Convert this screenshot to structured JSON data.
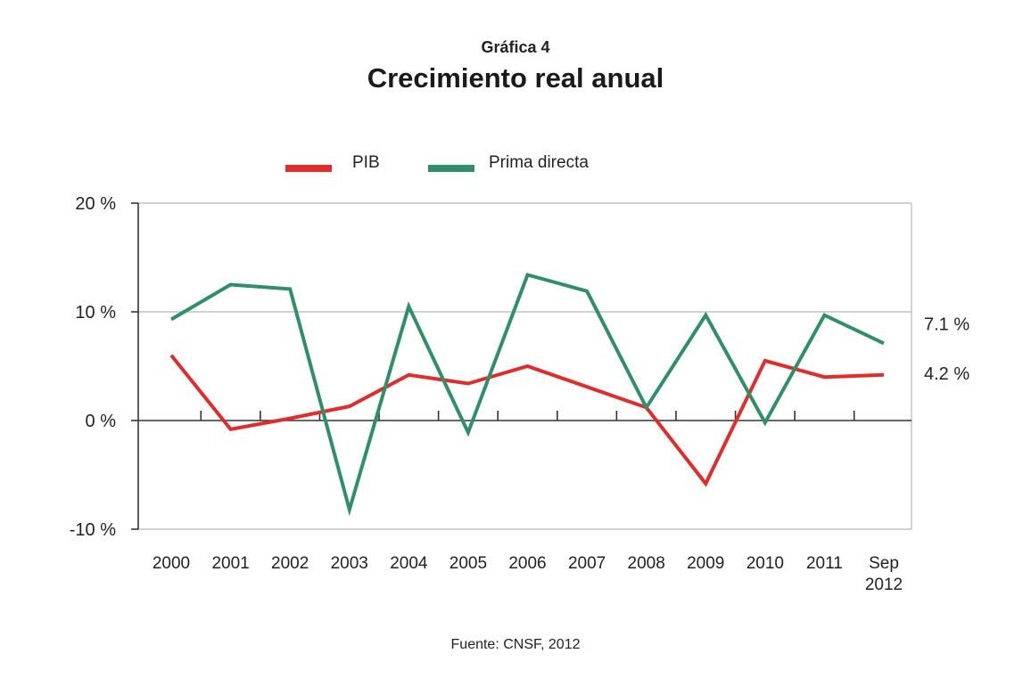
{
  "header": {
    "subtitle": "Gráfica 4",
    "title": "Crecimiento real anual"
  },
  "source": "Fuente: CNSF, 2012",
  "colors": {
    "pib": "#e32b2b",
    "prima": "#2e8f6a",
    "axis": "#333333",
    "grid": "#b8b8b8"
  },
  "chart_data": {
    "type": "line",
    "title": "Crecimiento real anual",
    "subtitle": "Gráfica 4",
    "categories": [
      "2000",
      "2001",
      "2002",
      "2003",
      "2004",
      "2005",
      "2006",
      "2007",
      "2008",
      "2009",
      "2010",
      "2011",
      "Sep 2012"
    ],
    "category_lines": [
      [
        "2000"
      ],
      [
        "2001"
      ],
      [
        "2002"
      ],
      [
        "2003"
      ],
      [
        "2004"
      ],
      [
        "2005"
      ],
      [
        "2006"
      ],
      [
        "2007"
      ],
      [
        "2008"
      ],
      [
        "2009"
      ],
      [
        "2010"
      ],
      [
        "2011"
      ],
      [
        "Sep",
        "2012"
      ]
    ],
    "series": [
      {
        "name": "PIB",
        "color": "#e32b2b",
        "values": [
          6.0,
          -0.8,
          0.2,
          1.3,
          4.2,
          3.4,
          5.0,
          3.1,
          1.2,
          -5.8,
          5.5,
          4.0,
          4.2
        ]
      },
      {
        "name": "Prima directa",
        "color": "#2e8f6a",
        "values": [
          9.3,
          12.5,
          12.1,
          -8.2,
          10.5,
          -1.1,
          13.4,
          11.9,
          1.2,
          9.7,
          -0.2,
          9.7,
          7.1
        ]
      }
    ],
    "yticks": [
      {
        "value": 20,
        "label": "20 %"
      },
      {
        "value": 10,
        "label": "10 %"
      },
      {
        "value": 0,
        "label": "0 %"
      },
      {
        "value": -10,
        "label": "-10 %"
      }
    ],
    "ylim": [
      -10,
      20
    ],
    "gridlines": [
      10
    ],
    "annotations": [
      {
        "value": 7.1,
        "label": "7.1 %"
      },
      {
        "value": 4.2,
        "label": "4.2 %"
      }
    ],
    "legend": "top"
  }
}
